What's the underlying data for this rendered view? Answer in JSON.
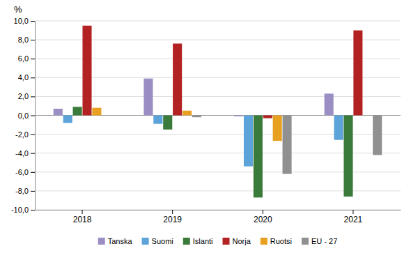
{
  "chart_data": {
    "type": "bar",
    "ylabel": "%",
    "categories": [
      "2018",
      "2019",
      "2020",
      "2021"
    ],
    "series": [
      {
        "name": "Tanska",
        "color": "#9b8ec4",
        "values": [
          0.7,
          3.9,
          -0.1,
          2.3
        ]
      },
      {
        "name": "Suomi",
        "color": "#5ba3d9",
        "values": [
          -0.8,
          -0.9,
          -5.4,
          -2.6
        ]
      },
      {
        "name": "Islanti",
        "color": "#3a7a3a",
        "values": [
          0.9,
          -1.5,
          -8.7,
          -8.6
        ]
      },
      {
        "name": "Norja",
        "color": "#b22222",
        "values": [
          9.5,
          7.6,
          -0.3,
          9.0
        ]
      },
      {
        "name": "Ruotsi",
        "color": "#e8a020",
        "values": [
          0.8,
          0.5,
          -2.7,
          0.0
        ]
      },
      {
        "name": "EU - 27",
        "color": "#909090",
        "values": [
          null,
          -0.2,
          -6.2,
          -4.2
        ]
      }
    ],
    "ylim": [
      -10.0,
      10.0
    ],
    "yticks": [
      {
        "value": -10.0,
        "label": "-10,0"
      },
      {
        "value": -8.0,
        "label": "-8,0"
      },
      {
        "value": -6.0,
        "label": "-6,0"
      },
      {
        "value": -4.0,
        "label": "-4,0"
      },
      {
        "value": -2.0,
        "label": "-2,0"
      },
      {
        "value": 0.0,
        "label": "0,0"
      },
      {
        "value": 2.0,
        "label": "2,0"
      },
      {
        "value": 4.0,
        "label": "4,0"
      },
      {
        "value": 6.0,
        "label": "6,0"
      },
      {
        "value": 8.0,
        "label": "8,0"
      },
      {
        "value": 10.0,
        "label": "10,0"
      }
    ],
    "grid": true,
    "legend": "bottom"
  }
}
